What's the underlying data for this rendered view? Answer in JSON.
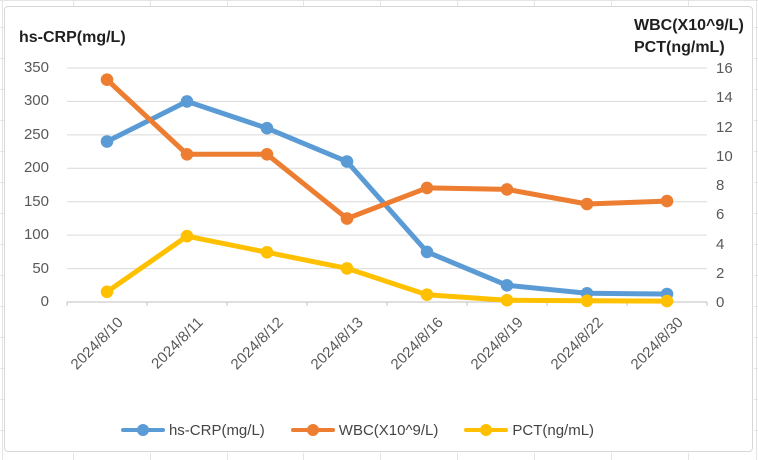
{
  "chart_data": {
    "type": "line",
    "left_axis_title": "hs-CRP(mg/L)",
    "right_axis_title_line1": "WBC(X10^9/L)",
    "right_axis_title_line2": "PCT(ng/mL)",
    "categories": [
      "2024/8/10",
      "2024/8/11",
      "2024/8/12",
      "2024/8/13",
      "2024/8/16",
      "2024/8/19",
      "2024/8/22",
      "2024/8/30"
    ],
    "series": [
      {
        "name": "hs-CRP(mg/L)",
        "axis": "left",
        "color": "#5B9BD5",
        "values": [
          240,
          300,
          260,
          210,
          75,
          25,
          13,
          12
        ]
      },
      {
        "name": "WBC(X10^9/L)",
        "axis": "right",
        "color": "#ED7D31",
        "values": [
          15.2,
          10.1,
          10.1,
          5.7,
          7.8,
          7.7,
          6.7,
          6.9
        ]
      },
      {
        "name": "PCT(ng/mL)",
        "axis": "right",
        "color": "#FFC000",
        "values": [
          0.7,
          4.5,
          3.4,
          2.3,
          0.5,
          0.12,
          0.08,
          0.06
        ]
      }
    ],
    "left_axis": {
      "min": 0,
      "max": 350,
      "step": 50,
      "tick_labels": [
        "350",
        "300",
        "250",
        "200",
        "150",
        "100",
        "50",
        "0"
      ]
    },
    "right_axis": {
      "min": 0,
      "max": 16,
      "step": 2,
      "tick_labels": [
        "16",
        "14",
        "12",
        "10",
        "8",
        "6",
        "4",
        "2",
        "0"
      ]
    },
    "grid": true,
    "legend_position": "bottom",
    "legend_labels": [
      "hs-CRP(mg/L)",
      "WBC(X10^9/L)",
      "PCT(ng/mL)"
    ]
  },
  "colors": {
    "series_blue": "#5B9BD5",
    "series_orange": "#ED7D31",
    "series_yellow": "#FFC000",
    "gridline": "#D9D9D9",
    "axis_line": "#BFBFBF",
    "tick_label": "#595959",
    "title_text": "#1F1F1F"
  }
}
